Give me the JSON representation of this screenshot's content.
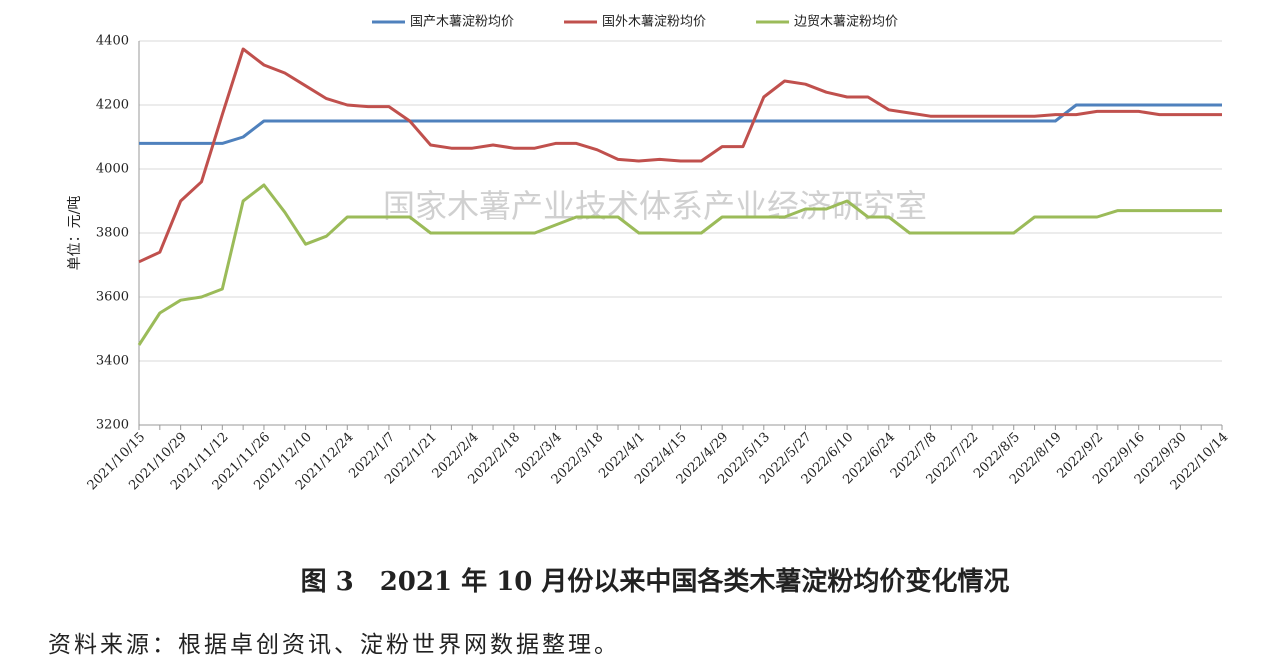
{
  "chart_data": {
    "type": "line",
    "legend_position": "top",
    "y_label": "单位：元/吨",
    "watermark": "国家木薯产业技术体系产业经济研究室",
    "caption": "图 3　2021 年 10 月份以来中国各类木薯淀粉均价变化情况",
    "source": "资料来源：根据卓创资讯、淀粉世界网数据整理。",
    "categories": [
      "2021/10/15",
      null,
      "2021/10/29",
      null,
      "2021/11/12",
      null,
      "2021/11/26",
      null,
      "2021/12/10",
      null,
      "2021/12/24",
      null,
      "2022/1/7",
      null,
      "2022/1/21",
      null,
      "2022/2/4",
      null,
      "2022/2/18",
      null,
      "2022/3/4",
      null,
      "2022/3/18",
      null,
      "2022/4/1",
      null,
      "2022/4/15",
      null,
      "2022/4/29",
      null,
      "2022/5/13",
      null,
      "2022/5/27",
      null,
      "2022/6/10",
      null,
      "2022/6/24",
      null,
      "2022/7/8",
      null,
      "2022/7/22",
      null,
      "2022/8/5",
      null,
      "2022/8/19",
      null,
      "2022/9/2",
      null,
      "2022/9/16",
      null,
      "2022/9/30",
      null,
      "2022/10/14"
    ],
    "ylim": [
      3200,
      4400
    ],
    "yticks": [
      3200,
      3400,
      3600,
      3800,
      4000,
      4200,
      4400
    ],
    "grid": true,
    "series": [
      {
        "name": "国产木薯淀粉均价",
        "color": "#4f81bd",
        "values": [
          4080,
          4080,
          4080,
          4080,
          4080,
          4100,
          4150,
          4150,
          4150,
          4150,
          4150,
          4150,
          4150,
          4150,
          4150,
          4150,
          4150,
          4150,
          4150,
          4150,
          4150,
          4150,
          4150,
          4150,
          4150,
          4150,
          4150,
          4150,
          4150,
          4150,
          4150,
          4150,
          4150,
          4150,
          4150,
          4150,
          4150,
          4150,
          4150,
          4150,
          4150,
          4150,
          4150,
          4150,
          4150,
          4200,
          4200,
          4200,
          4200,
          4200,
          4200,
          4200,
          4200
        ]
      },
      {
        "name": "国外木薯淀粉均价",
        "color": "#c0504d",
        "values": [
          3710,
          3740,
          3900,
          3960,
          4170,
          4375,
          4325,
          4300,
          4260,
          4220,
          4200,
          4195,
          4195,
          4150,
          4075,
          4065,
          4065,
          4075,
          4065,
          4065,
          4080,
          4080,
          4060,
          4030,
          4025,
          4030,
          4025,
          4025,
          4070,
          4070,
          4225,
          4275,
          4265,
          4240,
          4225,
          4225,
          4185,
          4175,
          4165,
          4165,
          4165,
          4165,
          4165,
          4165,
          4170,
          4170,
          4180,
          4180,
          4180,
          4170,
          4170,
          4170,
          4170
        ]
      },
      {
        "name": "边贸木薯淀粉均价",
        "color": "#9bbb59",
        "values": [
          3450,
          3550,
          3590,
          3600,
          3625,
          3900,
          3950,
          3865,
          3765,
          3790,
          3850,
          3850,
          3850,
          3850,
          3800,
          3800,
          3800,
          3800,
          3800,
          3800,
          3825,
          3850,
          3850,
          3850,
          3800,
          3800,
          3800,
          3800,
          3850,
          3850,
          3850,
          3850,
          3875,
          3875,
          3900,
          3850,
          3850,
          3800,
          3800,
          3800,
          3800,
          3800,
          3800,
          3850,
          3850,
          3850,
          3850,
          3870,
          3870,
          3870,
          3870,
          3870,
          3870
        ]
      }
    ]
  }
}
